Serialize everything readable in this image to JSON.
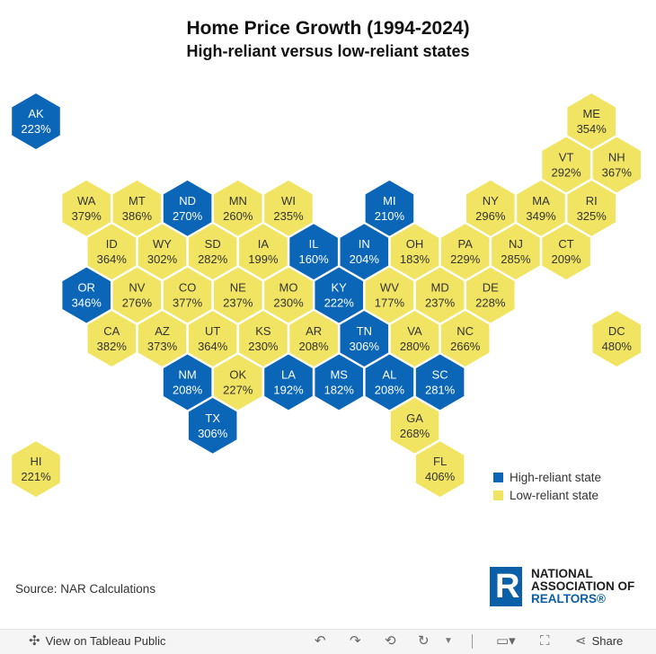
{
  "title": "Home Price Growth (1994-2024)",
  "subtitle": "High-reliant versus low-reliant states",
  "colors": {
    "high": "#0b66b8",
    "low": "#f1e463",
    "high_text": "#ffffff",
    "low_text": "#333333"
  },
  "states": [
    {
      "code": "AK",
      "value": "223%",
      "group": "high",
      "col": 0,
      "row": 0,
      "odd": false
    },
    {
      "code": "ME",
      "value": "354%",
      "group": "low",
      "col": 11,
      "row": 0,
      "odd": false
    },
    {
      "code": "VT",
      "value": "292%",
      "group": "low",
      "col": 10,
      "row": 1,
      "odd": true
    },
    {
      "code": "NH",
      "value": "367%",
      "group": "low",
      "col": 11,
      "row": 1,
      "odd": true
    },
    {
      "code": "WA",
      "value": "379%",
      "group": "low",
      "col": 1,
      "row": 2,
      "odd": false
    },
    {
      "code": "MT",
      "value": "386%",
      "group": "low",
      "col": 2,
      "row": 2,
      "odd": false
    },
    {
      "code": "ND",
      "value": "270%",
      "group": "high",
      "col": 3,
      "row": 2,
      "odd": false
    },
    {
      "code": "MN",
      "value": "260%",
      "group": "low",
      "col": 4,
      "row": 2,
      "odd": false
    },
    {
      "code": "WI",
      "value": "235%",
      "group": "low",
      "col": 5,
      "row": 2,
      "odd": false
    },
    {
      "code": "MI",
      "value": "210%",
      "group": "high",
      "col": 7,
      "row": 2,
      "odd": false
    },
    {
      "code": "NY",
      "value": "296%",
      "group": "low",
      "col": 9,
      "row": 2,
      "odd": false
    },
    {
      "code": "MA",
      "value": "349%",
      "group": "low",
      "col": 10,
      "row": 2,
      "odd": false
    },
    {
      "code": "RI",
      "value": "325%",
      "group": "low",
      "col": 11,
      "row": 2,
      "odd": false
    },
    {
      "code": "ID",
      "value": "364%",
      "group": "low",
      "col": 1,
      "row": 3,
      "odd": true
    },
    {
      "code": "WY",
      "value": "302%",
      "group": "low",
      "col": 2,
      "row": 3,
      "odd": true
    },
    {
      "code": "SD",
      "value": "282%",
      "group": "low",
      "col": 3,
      "row": 3,
      "odd": true
    },
    {
      "code": "IA",
      "value": "199%",
      "group": "low",
      "col": 4,
      "row": 3,
      "odd": true
    },
    {
      "code": "IL",
      "value": "160%",
      "group": "high",
      "col": 5,
      "row": 3,
      "odd": true
    },
    {
      "code": "IN",
      "value": "204%",
      "group": "high",
      "col": 6,
      "row": 3,
      "odd": true
    },
    {
      "code": "OH",
      "value": "183%",
      "group": "low",
      "col": 7,
      "row": 3,
      "odd": true
    },
    {
      "code": "PA",
      "value": "229%",
      "group": "low",
      "col": 8,
      "row": 3,
      "odd": true
    },
    {
      "code": "NJ",
      "value": "285%",
      "group": "low",
      "col": 9,
      "row": 3,
      "odd": true
    },
    {
      "code": "CT",
      "value": "209%",
      "group": "low",
      "col": 10,
      "row": 3,
      "odd": true
    },
    {
      "code": "OR",
      "value": "346%",
      "group": "high",
      "col": 1,
      "row": 4,
      "odd": false
    },
    {
      "code": "NV",
      "value": "276%",
      "group": "low",
      "col": 2,
      "row": 4,
      "odd": false
    },
    {
      "code": "CO",
      "value": "377%",
      "group": "low",
      "col": 3,
      "row": 4,
      "odd": false
    },
    {
      "code": "NE",
      "value": "237%",
      "group": "low",
      "col": 4,
      "row": 4,
      "odd": false
    },
    {
      "code": "MO",
      "value": "230%",
      "group": "low",
      "col": 5,
      "row": 4,
      "odd": false
    },
    {
      "code": "KY",
      "value": "222%",
      "group": "high",
      "col": 6,
      "row": 4,
      "odd": false
    },
    {
      "code": "WV",
      "value": "177%",
      "group": "low",
      "col": 7,
      "row": 4,
      "odd": false
    },
    {
      "code": "MD",
      "value": "237%",
      "group": "low",
      "col": 8,
      "row": 4,
      "odd": false
    },
    {
      "code": "DE",
      "value": "228%",
      "group": "low",
      "col": 9,
      "row": 4,
      "odd": false
    },
    {
      "code": "CA",
      "value": "382%",
      "group": "low",
      "col": 1,
      "row": 5,
      "odd": true
    },
    {
      "code": "AZ",
      "value": "373%",
      "group": "low",
      "col": 2,
      "row": 5,
      "odd": true
    },
    {
      "code": "UT",
      "value": "364%",
      "group": "low",
      "col": 3,
      "row": 5,
      "odd": true
    },
    {
      "code": "KS",
      "value": "230%",
      "group": "low",
      "col": 4,
      "row": 5,
      "odd": true
    },
    {
      "code": "AR",
      "value": "208%",
      "group": "low",
      "col": 5,
      "row": 5,
      "odd": true
    },
    {
      "code": "TN",
      "value": "306%",
      "group": "high",
      "col": 6,
      "row": 5,
      "odd": true
    },
    {
      "code": "VA",
      "value": "280%",
      "group": "low",
      "col": 7,
      "row": 5,
      "odd": true
    },
    {
      "code": "NC",
      "value": "266%",
      "group": "low",
      "col": 8,
      "row": 5,
      "odd": true
    },
    {
      "code": "DC",
      "value": "480%",
      "group": "low",
      "col": 11,
      "row": 5,
      "odd": true
    },
    {
      "code": "NM",
      "value": "208%",
      "group": "high",
      "col": 3,
      "row": 6,
      "odd": false
    },
    {
      "code": "OK",
      "value": "227%",
      "group": "low",
      "col": 4,
      "row": 6,
      "odd": false
    },
    {
      "code": "LA",
      "value": "192%",
      "group": "high",
      "col": 5,
      "row": 6,
      "odd": false
    },
    {
      "code": "MS",
      "value": "182%",
      "group": "high",
      "col": 6,
      "row": 6,
      "odd": false
    },
    {
      "code": "AL",
      "value": "208%",
      "group": "high",
      "col": 7,
      "row": 6,
      "odd": false
    },
    {
      "code": "SC",
      "value": "281%",
      "group": "high",
      "col": 8,
      "row": 6,
      "odd": false
    },
    {
      "code": "TX",
      "value": "306%",
      "group": "high",
      "col": 3,
      "row": 7,
      "odd": true
    },
    {
      "code": "GA",
      "value": "268%",
      "group": "low",
      "col": 7,
      "row": 7,
      "odd": true
    },
    {
      "code": "HI",
      "value": "221%",
      "group": "low",
      "col": 0,
      "row": 8,
      "odd": false
    },
    {
      "code": "FL",
      "value": "406%",
      "group": "low",
      "col": 8,
      "row": 8,
      "odd": false
    }
  ],
  "legend": {
    "high": "High-reliant state",
    "low": "Low-reliant state"
  },
  "source": "Source: NAR Calculations",
  "logo": {
    "line1": "NATIONAL",
    "line2": "ASSOCIATION OF",
    "line3": "REALTORS®",
    "mark": "R"
  },
  "toolbar": {
    "view_label": "View on Tableau Public",
    "share_label": "Share"
  }
}
